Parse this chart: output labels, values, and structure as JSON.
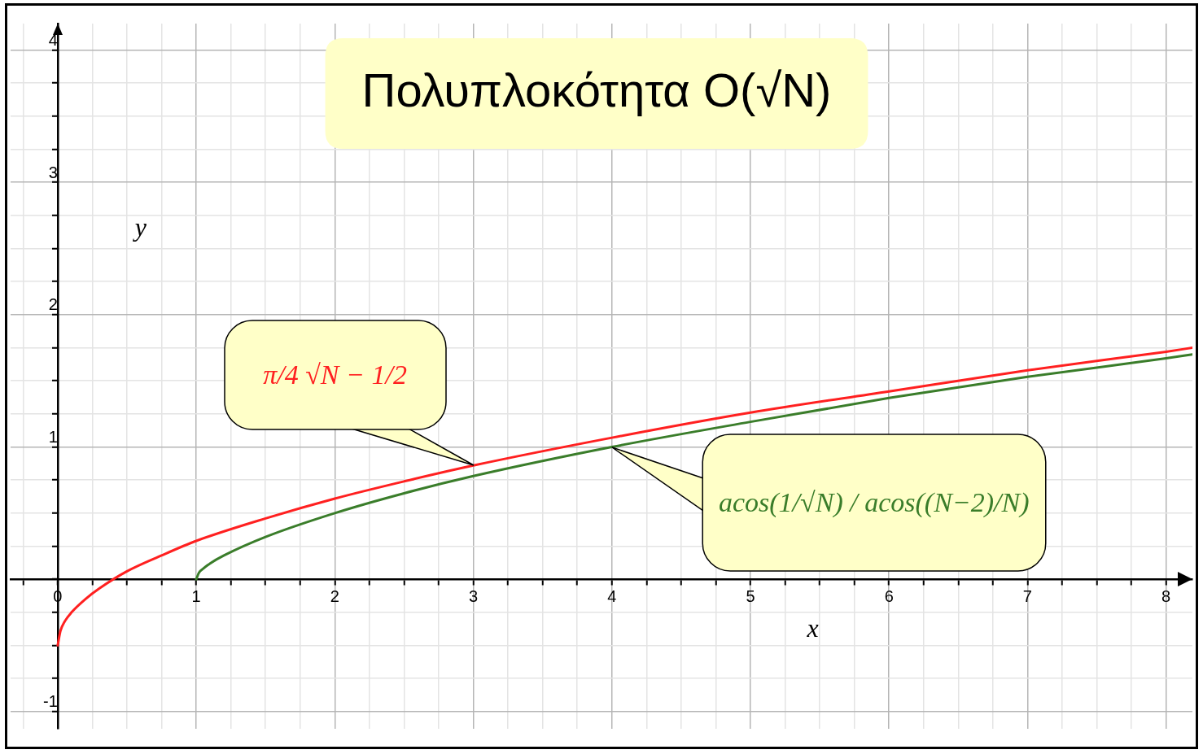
{
  "chart_data": {
    "type": "line",
    "title": "Πολυπλοκότητα O(√N)",
    "xlabel": "x",
    "ylabel": "y",
    "xlim": [
      -0.34,
      8.19
    ],
    "ylim": [
      -1.13,
      4.2
    ],
    "xticks": [
      {
        "value": -0.25,
        "label": null
      },
      0,
      {
        "value": 0.25,
        "label": null
      },
      {
        "value": 0.5,
        "label": null
      },
      {
        "value": 0.75,
        "label": null
      },
      1,
      {
        "value": 1.25,
        "label": null
      },
      {
        "value": 1.5,
        "label": null
      },
      {
        "value": 1.75,
        "label": null
      },
      2,
      {
        "value": 2.25,
        "label": null
      },
      {
        "value": 2.5,
        "label": null
      },
      {
        "value": 2.75,
        "label": null
      },
      3,
      {
        "value": 3.25,
        "label": null
      },
      {
        "value": 3.5,
        "label": null
      },
      {
        "value": 3.75,
        "label": null
      },
      4,
      {
        "value": 4.25,
        "label": null
      },
      {
        "value": 4.5,
        "label": null
      },
      {
        "value": 4.75,
        "label": null
      },
      5,
      {
        "value": 5.25,
        "label": null
      },
      {
        "value": 5.5,
        "label": null
      },
      {
        "value": 5.75,
        "label": null
      },
      6,
      {
        "value": 6.25,
        "label": null
      },
      {
        "value": 6.5,
        "label": null
      },
      {
        "value": 6.75,
        "label": null
      },
      7,
      {
        "value": 7.25,
        "label": null
      },
      {
        "value": 7.5,
        "label": null
      },
      {
        "value": 7.75,
        "label": null
      },
      8
    ],
    "yticks": [
      -1,
      {
        "value": -0.75,
        "label": null
      },
      {
        "value": -0.5,
        "label": null
      },
      {
        "value": -0.25,
        "label": null
      },
      {
        "value": 0,
        "label": null
      },
      {
        "value": 0.25,
        "label": null
      },
      {
        "value": 0.5,
        "label": null
      },
      {
        "value": 0.75,
        "label": null
      },
      1,
      {
        "value": 1.25,
        "label": null
      },
      {
        "value": 1.5,
        "label": null
      },
      {
        "value": 1.75,
        "label": null
      },
      2,
      {
        "value": 2.25,
        "label": null
      },
      {
        "value": 2.5,
        "label": null
      },
      {
        "value": 2.75,
        "label": null
      },
      3,
      {
        "value": 3.25,
        "label": null
      },
      {
        "value": 3.5,
        "label": null
      },
      {
        "value": 3.75,
        "label": null
      },
      4
    ],
    "grid": true,
    "legend": false,
    "marker": "none",
    "line_style": "solid",
    "series": [
      {
        "name": "π/4 √N − 1/2",
        "color": "#ff2020",
        "x": [
          0,
          0.02,
          0.05,
          0.1,
          0.2,
          0.3,
          0.5,
          0.75,
          1,
          1.5,
          2,
          2.5,
          3,
          4,
          5,
          6,
          7,
          8,
          8.19
        ],
        "values": [
          -0.5,
          -0.39,
          -0.32,
          -0.25,
          -0.15,
          -0.07,
          0.06,
          0.18,
          0.29,
          0.46,
          0.61,
          0.74,
          0.86,
          1.07,
          1.26,
          1.42,
          1.58,
          1.72,
          1.75
        ]
      },
      {
        "name": "acos(1/√N) / acos((N−2)/N)",
        "color": "#3a7d2a",
        "x": [
          1,
          1.02,
          1.05,
          1.1,
          1.2,
          1.5,
          2,
          2.5,
          3,
          4,
          5,
          6,
          7,
          8,
          8.19
        ],
        "values": [
          0,
          0.05,
          0.08,
          0.12,
          0.18,
          0.32,
          0.5,
          0.65,
          0.78,
          1,
          1.19,
          1.37,
          1.53,
          1.67,
          1.7
        ]
      }
    ]
  }
}
